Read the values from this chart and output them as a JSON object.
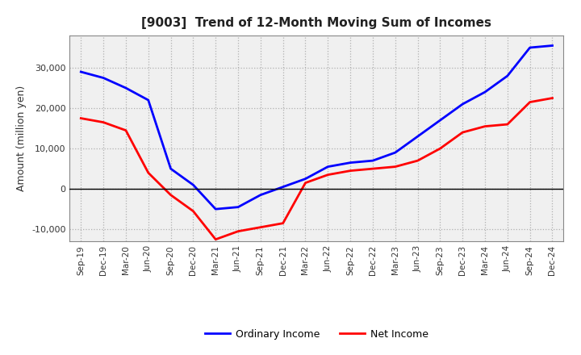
{
  "title": "[9003]  Trend of 12-Month Moving Sum of Incomes",
  "ylabel": "Amount (million yen)",
  "x_labels": [
    "Sep-19",
    "Dec-19",
    "Mar-20",
    "Jun-20",
    "Sep-20",
    "Dec-20",
    "Mar-21",
    "Jun-21",
    "Sep-21",
    "Dec-21",
    "Mar-22",
    "Jun-22",
    "Sep-22",
    "Dec-22",
    "Mar-23",
    "Jun-23",
    "Sep-23",
    "Dec-23",
    "Mar-24",
    "Jun-24",
    "Sep-24",
    "Dec-24"
  ],
  "ordinary_income": [
    29000,
    27500,
    25000,
    22000,
    5000,
    1000,
    -5000,
    -4500,
    -1500,
    500,
    2500,
    5500,
    6500,
    7000,
    9000,
    13000,
    17000,
    21000,
    24000,
    28000,
    35000,
    35500
  ],
  "net_income": [
    17500,
    16500,
    14500,
    4000,
    -1500,
    -5500,
    -12500,
    -10500,
    -9500,
    -8500,
    1500,
    3500,
    4500,
    5000,
    5500,
    7000,
    10000,
    14000,
    15500,
    16000,
    21500,
    22500
  ],
  "ordinary_color": "#0000ff",
  "net_color": "#ff0000",
  "line_width": 2.0,
  "ylim": [
    -13000,
    38000
  ],
  "yticks": [
    -10000,
    0,
    10000,
    20000,
    30000
  ],
  "background_color": "#ffffff",
  "plot_bg_color": "#f0f0f0",
  "grid_color": "#b0b0b0"
}
